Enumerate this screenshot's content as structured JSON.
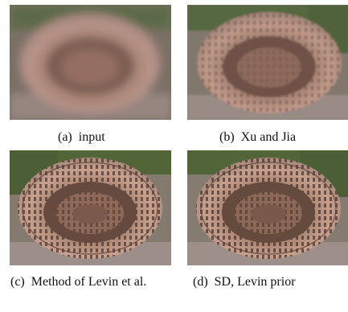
{
  "figure": {
    "panels": [
      {
        "id": "a",
        "label": "(a)",
        "caption": "input",
        "treatment": "heavy-blur"
      },
      {
        "id": "b",
        "label": "(b)",
        "caption": "Xu and Jia",
        "treatment": "slight-blur"
      },
      {
        "id": "c",
        "label": "(c)",
        "caption": "Method of Levin et al.",
        "treatment": "sharp"
      },
      {
        "id": "d",
        "label": "(d)",
        "caption": "SD, Levin prior",
        "treatment": "sharp"
      }
    ],
    "image_subject": "aerial view of the Colosseum",
    "colors": {
      "stone": "#b08a78",
      "stone_dark": "#6e5448",
      "arena": "#8a6a5c",
      "grass": "#58693f",
      "ground": "#9a8a86"
    }
  }
}
